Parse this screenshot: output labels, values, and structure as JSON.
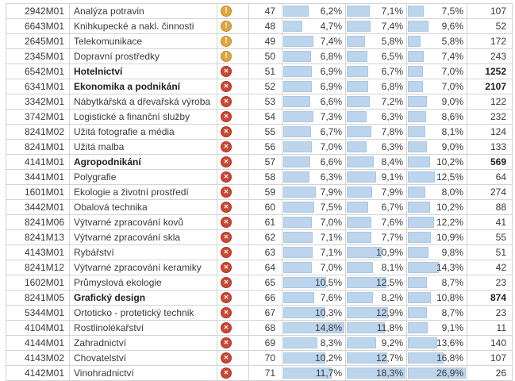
{
  "table": {
    "percent_bar_color": "#bcd4ec",
    "warning_icon_color": "#e2a63d",
    "error_icon_color": "#cd4732",
    "percent_column_maxes": [
      14.8,
      18.3,
      26.9
    ],
    "rows": [
      {
        "code": "2942M01",
        "name": "Analýza potravin",
        "icon": "warning",
        "rank": "47",
        "p1": "6,2%",
        "p2": "7,1%",
        "p3": "7,5%",
        "count": "107",
        "bold": false
      },
      {
        "code": "6643M01",
        "name": "Knihkupecké a nakl. činnosti",
        "icon": "warning",
        "rank": "48",
        "p1": "4,7%",
        "p2": "7,4%",
        "p3": "9,6%",
        "count": "52",
        "bold": false
      },
      {
        "code": "2645M01",
        "name": "Telekomunikace",
        "icon": "warning",
        "rank": "49",
        "p1": "7,4%",
        "p2": "5,8%",
        "p3": "5,8%",
        "count": "172",
        "bold": false
      },
      {
        "code": "2345M01",
        "name": "Dopravní prostředky",
        "icon": "warning",
        "rank": "50",
        "p1": "6,8%",
        "p2": "6,5%",
        "p3": "7,4%",
        "count": "243",
        "bold": false
      },
      {
        "code": "6542M01",
        "name": "Hotelnictví",
        "icon": "error",
        "rank": "51",
        "p1": "6,9%",
        "p2": "6,7%",
        "p3": "7,0%",
        "count": "1252",
        "bold": true
      },
      {
        "code": "6341M01",
        "name": "Ekonomika a podnikání",
        "icon": "error",
        "rank": "52",
        "p1": "6,9%",
        "p2": "6,8%",
        "p3": "7,0%",
        "count": "2107",
        "bold": true
      },
      {
        "code": "3342M01",
        "name": "Nábytkářská a dřevařská výroba",
        "icon": "error",
        "rank": "53",
        "p1": "6,6%",
        "p2": "7,2%",
        "p3": "9,0%",
        "count": "122",
        "bold": false
      },
      {
        "code": "3742M01",
        "name": "Logistické a finanční služby",
        "icon": "error",
        "rank": "54",
        "p1": "7,3%",
        "p2": "6,3%",
        "p3": "8,6%",
        "count": "232",
        "bold": false
      },
      {
        "code": "8241M02",
        "name": "Užitá fotografie a média",
        "icon": "error",
        "rank": "55",
        "p1": "6,7%",
        "p2": "7,8%",
        "p3": "8,1%",
        "count": "124",
        "bold": false
      },
      {
        "code": "8241M01",
        "name": "Užitá malba",
        "icon": "error",
        "rank": "56",
        "p1": "7,0%",
        "p2": "6,3%",
        "p3": "9,0%",
        "count": "133",
        "bold": false
      },
      {
        "code": "4141M01",
        "name": "Agropodnikání",
        "icon": "error",
        "rank": "57",
        "p1": "6,6%",
        "p2": "8,4%",
        "p3": "10,2%",
        "count": "569",
        "bold": true
      },
      {
        "code": "3441M01",
        "name": "Polygrafie",
        "icon": "error",
        "rank": "58",
        "p1": "6,3%",
        "p2": "9,1%",
        "p3": "12,5%",
        "count": "64",
        "bold": false
      },
      {
        "code": "1601M01",
        "name": "Ekologie a životní prostředí",
        "icon": "error",
        "rank": "59",
        "p1": "7,9%",
        "p2": "7,9%",
        "p3": "8,0%",
        "count": "274",
        "bold": false
      },
      {
        "code": "3442M01",
        "name": "Obalová technika",
        "icon": "error",
        "rank": "60",
        "p1": "7,5%",
        "p2": "6,7%",
        "p3": "10,2%",
        "count": "88",
        "bold": false
      },
      {
        "code": "8241M06",
        "name": "Výtvarné zpracování kovů",
        "icon": "error",
        "rank": "61",
        "p1": "7,0%",
        "p2": "7,6%",
        "p3": "12,2%",
        "count": "41",
        "bold": false
      },
      {
        "code": "8241M13",
        "name": "Výtvarné zpracování skla",
        "icon": "error",
        "rank": "62",
        "p1": "7,1%",
        "p2": "7,7%",
        "p3": "10,9%",
        "count": "55",
        "bold": false
      },
      {
        "code": "4143M01",
        "name": "Rybářství",
        "icon": "error",
        "rank": "63",
        "p1": "7,1%",
        "p2": "10,9%",
        "p3": "9,8%",
        "count": "51",
        "bold": false
      },
      {
        "code": "8241M12",
        "name": "Výtvarné zpracování keramiky",
        "icon": "error",
        "rank": "64",
        "p1": "7,0%",
        "p2": "8,1%",
        "p3": "14,3%",
        "count": "42",
        "bold": false
      },
      {
        "code": "1602M01",
        "name": "Průmyslová ekologie",
        "icon": "error",
        "rank": "65",
        "p1": "10,5%",
        "p2": "12,5%",
        "p3": "8,7%",
        "count": "23",
        "bold": false
      },
      {
        "code": "8241M05",
        "name": "Grafický design",
        "icon": "error",
        "rank": "66",
        "p1": "7,6%",
        "p2": "8,2%",
        "p3": "10,8%",
        "count": "874",
        "bold": true
      },
      {
        "code": "5344M01",
        "name": "Ortoticko - protetický technik",
        "icon": "error",
        "rank": "67",
        "p1": "10,3%",
        "p2": "12,9%",
        "p3": "8,7%",
        "count": "23",
        "bold": false
      },
      {
        "code": "4104M01",
        "name": "Rostlinolékařství",
        "icon": "error",
        "rank": "68",
        "p1": "14,8%",
        "p2": "11,8%",
        "p3": "9,1%",
        "count": "11",
        "bold": false
      },
      {
        "code": "4144M01",
        "name": "Zahradnictví",
        "icon": "error",
        "rank": "69",
        "p1": "8,3%",
        "p2": "9,2%",
        "p3": "13,6%",
        "count": "140",
        "bold": false
      },
      {
        "code": "4143M02",
        "name": "Chovatelství",
        "icon": "error",
        "rank": "70",
        "p1": "10,2%",
        "p2": "12,7%",
        "p3": "16,8%",
        "count": "107",
        "bold": false
      },
      {
        "code": "4142M01",
        "name": "Vinohradnictví",
        "icon": "error",
        "rank": "71",
        "p1": "11,7%",
        "p2": "18,3%",
        "p3": "26,9%",
        "count": "26",
        "bold": false
      }
    ]
  }
}
